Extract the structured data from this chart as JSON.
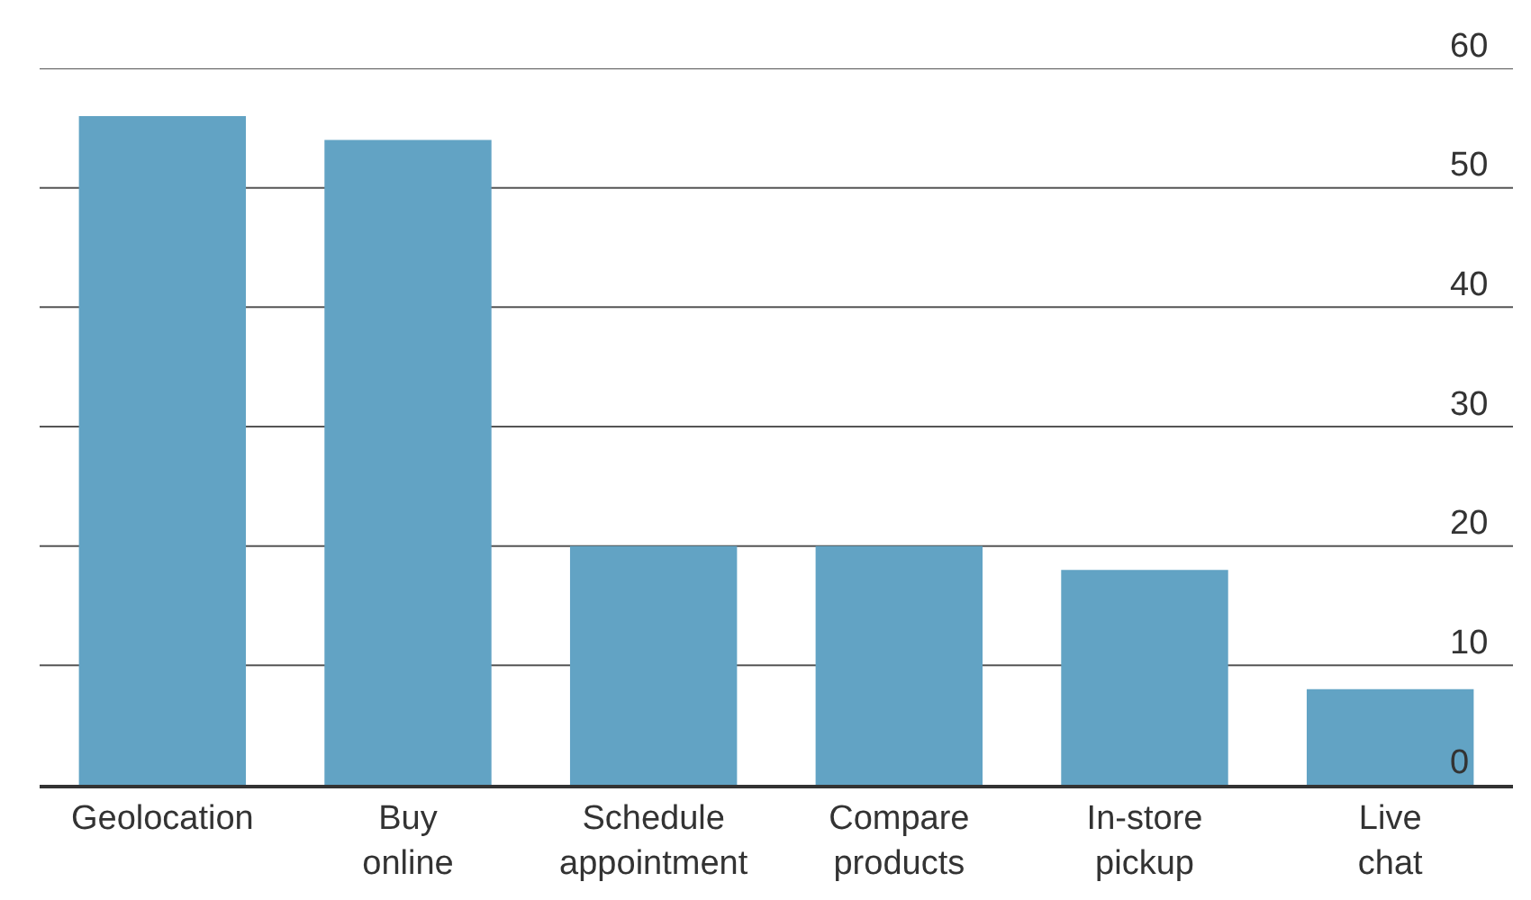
{
  "chart_data": {
    "type": "bar",
    "categories": [
      "Geolocation",
      "Buy\nonline",
      "Schedule\nappointment",
      "Compare\nproducts",
      "In-store\npickup",
      "Live\nchat"
    ],
    "values": [
      56,
      54,
      20,
      20,
      18,
      8
    ],
    "color": "#62a3c4",
    "ylim": [
      0,
      60
    ],
    "yticks": [
      0,
      10,
      20,
      30,
      40,
      50,
      60
    ],
    "grid": "y"
  }
}
